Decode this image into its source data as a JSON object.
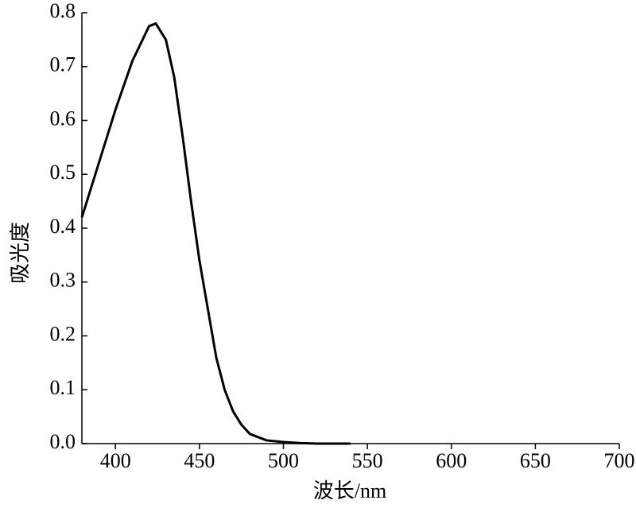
{
  "chart_data": {
    "type": "line",
    "x_label": "波长/nm",
    "y_label": "吸光度",
    "x": [
      380,
      390,
      400,
      410,
      420,
      424,
      430,
      435,
      440,
      445,
      450,
      455,
      460,
      465,
      470,
      475,
      480,
      490,
      500,
      510,
      520,
      540
    ],
    "series": [
      {
        "color": "#000000",
        "values": [
          0.42,
          0.52,
          0.62,
          0.71,
          0.775,
          0.78,
          0.75,
          0.68,
          0.57,
          0.45,
          0.34,
          0.25,
          0.16,
          0.1,
          0.06,
          0.035,
          0.018,
          0.006,
          0.003,
          0.001,
          0,
          0
        ]
      }
    ],
    "xlim": [
      380,
      700
    ],
    "ylim": [
      0,
      0.8
    ],
    "xticks": [
      400,
      450,
      500,
      550,
      600,
      650,
      700
    ],
    "yticks": [
      {
        "value": 0,
        "label": "0.0"
      },
      0.1,
      0.2,
      0.3,
      0.4,
      0.5,
      0.6,
      0.7,
      0.8
    ]
  }
}
